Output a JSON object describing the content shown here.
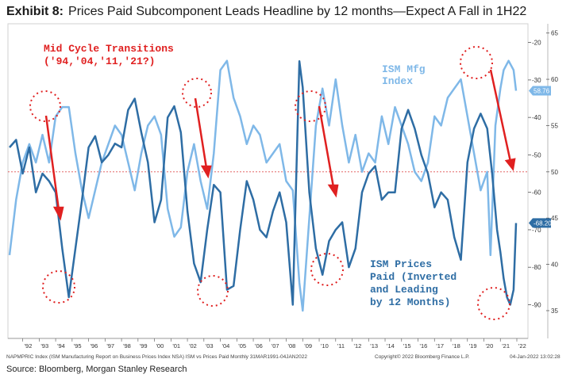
{
  "header": {
    "exhibit": "Exhibit 8:",
    "title": "Prices Paid Subcomponent Leads Headline by 12 months—Expect A Fall in 1H22"
  },
  "footer": {
    "source": "Source: Bloomberg, Morgan Stanley Research",
    "footnote_left": "NAPMPRIC Index (ISM Manufacturing Report on Business Prices Index NSA) ISM vs Prices Paid  Monthly 31MAR1991-04JAN2022",
    "footnote_mid": "Copyright© 2022 Bloomberg Finance L.P.",
    "footnote_right": "04-Jan-2022  13:02:28"
  },
  "annotations": {
    "mid_cycle_line1": "Mid Cycle Transitions",
    "mid_cycle_line2": "('94,'04,'11,'21?)",
    "ism_mfg_line1": "ISM Mfg",
    "ism_mfg_line2": "Index",
    "prices_line1": "ISM Prices",
    "prices_line2": "Paid (Inverted",
    "prices_line3": "and Leading",
    "prices_line4": "by 12 Months)"
  },
  "colors": {
    "ism_mfg": "#7fb8e8",
    "prices_paid": "#2e6da4",
    "annotation_red": "#e02020",
    "reference_line": "#e05050",
    "axis_text": "#333333"
  },
  "chart_data": {
    "type": "line",
    "x_range": [
      1991.2,
      2022.0
    ],
    "x_tick_labels": [
      "'92",
      "'93",
      "'94",
      "'95",
      "'96",
      "'97",
      "'98",
      "'99",
      "'00",
      "'01",
      "'02",
      "'03",
      "'04",
      "'05",
      "'06",
      "'07",
      "'08",
      "'09",
      "'10",
      "'11",
      "'12",
      "'13",
      "'14",
      "'15",
      "'16",
      "'17",
      "'18",
      "'19",
      "'20",
      "'21",
      "'22"
    ],
    "x_tick_years": [
      1992,
      1993,
      1994,
      1995,
      1996,
      1997,
      1998,
      1999,
      2000,
      2001,
      2002,
      2003,
      2004,
      2005,
      2006,
      2007,
      2008,
      2009,
      2010,
      2011,
      2012,
      2013,
      2014,
      2015,
      2016,
      2017,
      2018,
      2019,
      2020,
      2021,
      2022
    ],
    "left_axis": {
      "range": [
        32,
        66
      ],
      "ticks": [
        35,
        40,
        45,
        50,
        55,
        60,
        65
      ],
      "label": "ISM Mfg Index"
    },
    "right_axis": {
      "range": [
        99,
        15
      ],
      "inverted": true,
      "ticks": [
        -20,
        -30,
        -40,
        -50,
        -60,
        -70,
        -80,
        -90
      ],
      "label": "ISM Prices Paid (inverted)"
    },
    "reference_line": {
      "left_axis_value": 50
    },
    "last_value_tags": [
      {
        "axis": "left",
        "value": 58.76,
        "label": "58.76"
      },
      {
        "axis": "right",
        "value": 68.2,
        "label": "-68.20"
      }
    ],
    "series": [
      {
        "name": "ISM Mfg Index",
        "axis": "left",
        "x": [
          1991.2,
          1991.6,
          1992.0,
          1992.4,
          1992.8,
          1993.2,
          1993.6,
          1994.0,
          1994.4,
          1994.8,
          1995.2,
          1995.6,
          1996.0,
          1996.4,
          1996.8,
          1997.2,
          1997.6,
          1998.0,
          1998.4,
          1998.8,
          1999.2,
          1999.6,
          2000.0,
          2000.4,
          2000.8,
          2001.2,
          2001.6,
          2002.0,
          2002.4,
          2002.8,
          2003.2,
          2003.6,
          2004.0,
          2004.4,
          2004.8,
          2005.2,
          2005.6,
          2006.0,
          2006.4,
          2006.8,
          2007.2,
          2007.6,
          2008.0,
          2008.4,
          2008.8,
          2009.0,
          2009.4,
          2009.8,
          2010.2,
          2010.6,
          2011.0,
          2011.4,
          2011.8,
          2012.2,
          2012.6,
          2013.0,
          2013.4,
          2013.8,
          2014.2,
          2014.6,
          2015.0,
          2015.4,
          2015.8,
          2016.2,
          2016.6,
          2017.0,
          2017.4,
          2017.8,
          2018.2,
          2018.6,
          2019.0,
          2019.4,
          2019.8,
          2020.2,
          2020.4,
          2020.7,
          2021.0,
          2021.2,
          2021.5,
          2021.8,
          2021.95
        ],
        "values": [
          41,
          47,
          51,
          53,
          51,
          54,
          51,
          56,
          57,
          57,
          52,
          48,
          45,
          48,
          51,
          53,
          55,
          54,
          51,
          48,
          52,
          55,
          56,
          54,
          46,
          43,
          44,
          50,
          53,
          49,
          46,
          52,
          61,
          62,
          58,
          56,
          53,
          55,
          54,
          51,
          52,
          53,
          49,
          48,
          38,
          35,
          45,
          55,
          59,
          55,
          60,
          55,
          51,
          54,
          50,
          52,
          51,
          56,
          53,
          57,
          55,
          53,
          50,
          49,
          51,
          56,
          55,
          58,
          59,
          60,
          56,
          52,
          48,
          50,
          41,
          55,
          59,
          61,
          62,
          61,
          58.76
        ]
      },
      {
        "name": "ISM Prices Paid (Inverted and Leading by 12 Months)",
        "axis": "right",
        "x": [
          1991.2,
          1991.6,
          1992.0,
          1992.4,
          1992.8,
          1993.2,
          1993.6,
          1994.0,
          1994.4,
          1994.8,
          1995.2,
          1995.6,
          1996.0,
          1996.4,
          1996.8,
          1997.2,
          1997.6,
          1998.0,
          1998.4,
          1998.8,
          1999.2,
          1999.6,
          2000.0,
          2000.4,
          2000.8,
          2001.2,
          2001.6,
          2002.0,
          2002.4,
          2002.8,
          2003.2,
          2003.6,
          2004.0,
          2004.4,
          2004.8,
          2005.2,
          2005.6,
          2006.0,
          2006.4,
          2006.8,
          2007.2,
          2007.6,
          2008.0,
          2008.4,
          2008.8,
          2009.0,
          2009.4,
          2009.8,
          2010.2,
          2010.6,
          2011.0,
          2011.4,
          2011.8,
          2012.2,
          2012.6,
          2013.0,
          2013.4,
          2013.8,
          2014.2,
          2014.6,
          2015.0,
          2015.4,
          2015.8,
          2016.2,
          2016.6,
          2017.0,
          2017.4,
          2017.8,
          2018.2,
          2018.6,
          2019.0,
          2019.4,
          2019.8,
          2020.2,
          2020.5,
          2020.8,
          2021.0,
          2021.2,
          2021.4,
          2021.6,
          2021.8,
          2021.95
        ],
        "values": [
          48,
          46,
          55,
          48,
          60,
          55,
          57,
          60,
          75,
          88,
          75,
          62,
          48,
          45,
          52,
          50,
          47,
          48,
          38,
          35,
          44,
          52,
          68,
          62,
          40,
          37,
          44,
          65,
          79,
          84,
          70,
          58,
          60,
          86,
          85,
          70,
          57,
          62,
          70,
          72,
          65,
          60,
          68,
          90,
          25,
          32,
          60,
          75,
          82,
          73,
          70,
          68,
          80,
          75,
          60,
          55,
          53,
          62,
          60,
          60,
          43,
          38,
          43,
          50,
          55,
          64,
          60,
          62,
          72,
          78,
          52,
          43,
          39,
          43,
          55,
          70,
          76,
          83,
          88,
          90,
          86,
          68.2
        ]
      }
    ]
  }
}
